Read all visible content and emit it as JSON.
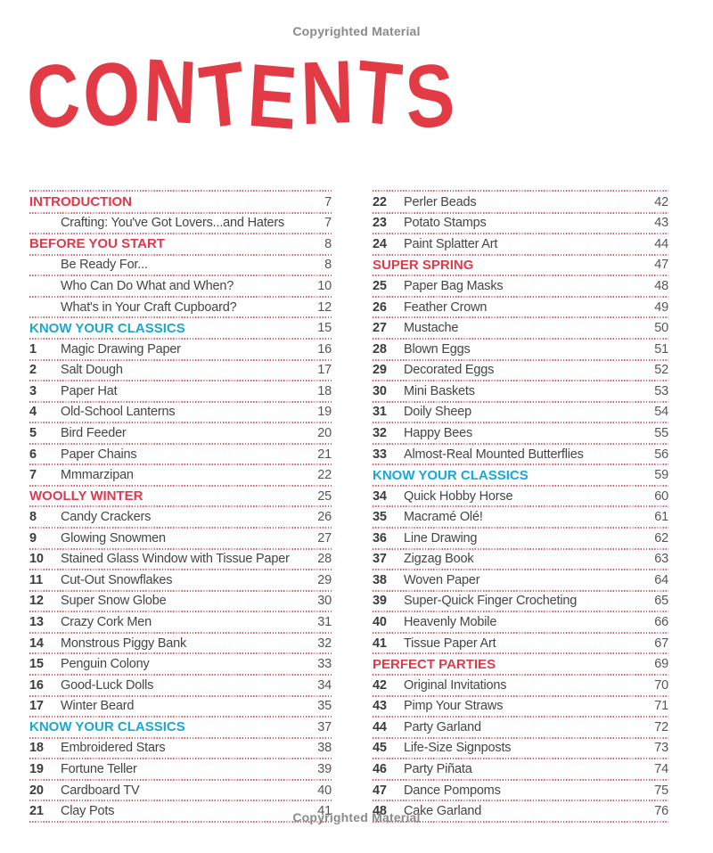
{
  "page": {
    "copyright_top": "Copyrighted Material",
    "copyright_bottom": "Copyrighted Material",
    "title": "CONTENTS"
  },
  "colors": {
    "title_red": "#E23B45",
    "section_red": "#E0394C",
    "section_cyan": "#1BA7D4",
    "dotted_line": "#D55F6E",
    "entry_text": "#454545",
    "copyright_gray": "#8A8A8A"
  },
  "toc": {
    "left": [
      {
        "type": "section",
        "accent": "red",
        "label": "INTRODUCTION",
        "page": "7"
      },
      {
        "type": "entry",
        "label": "Crafting: You've Got Lovers...and Haters",
        "page": "7"
      },
      {
        "type": "section",
        "accent": "red",
        "label": "BEFORE YOU START",
        "page": "8"
      },
      {
        "type": "entry",
        "label": "Be Ready For...",
        "page": "8"
      },
      {
        "type": "entry",
        "label": "Who Can Do What and When?",
        "page": "10"
      },
      {
        "type": "entry",
        "label": "What's in Your Craft Cupboard?",
        "page": "12"
      },
      {
        "type": "section",
        "accent": "cyan",
        "label": "KNOW YOUR CLASSICS",
        "page": "15"
      },
      {
        "type": "entry",
        "num": "1",
        "label": "Magic Drawing Paper",
        "page": "16"
      },
      {
        "type": "entry",
        "num": "2",
        "label": "Salt Dough",
        "page": "17"
      },
      {
        "type": "entry",
        "num": "3",
        "label": "Paper Hat",
        "page": "18"
      },
      {
        "type": "entry",
        "num": "4",
        "label": "Old-School Lanterns",
        "page": "19"
      },
      {
        "type": "entry",
        "num": "5",
        "label": "Bird Feeder",
        "page": "20"
      },
      {
        "type": "entry",
        "num": "6",
        "label": "Paper Chains",
        "page": "21"
      },
      {
        "type": "entry",
        "num": "7",
        "label": "Mmmarzipan",
        "page": "22"
      },
      {
        "type": "section",
        "accent": "red",
        "label": "WOOLLY WINTER",
        "page": "25"
      },
      {
        "type": "entry",
        "num": "8",
        "label": "Candy Crackers",
        "page": "26"
      },
      {
        "type": "entry",
        "num": "9",
        "label": "Glowing Snowmen",
        "page": "27"
      },
      {
        "type": "entry",
        "num": "10",
        "label": "Stained Glass Window with Tissue Paper",
        "page": "28"
      },
      {
        "type": "entry",
        "num": "11",
        "label": "Cut-Out Snowflakes",
        "page": "29"
      },
      {
        "type": "entry",
        "num": "12",
        "label": "Super Snow Globe",
        "page": "30"
      },
      {
        "type": "entry",
        "num": "13",
        "label": "Crazy Cork Men",
        "page": "31"
      },
      {
        "type": "entry",
        "num": "14",
        "label": "Monstrous Piggy Bank",
        "page": "32"
      },
      {
        "type": "entry",
        "num": "15",
        "label": "Penguin Colony",
        "page": "33"
      },
      {
        "type": "entry",
        "num": "16",
        "label": "Good-Luck Dolls",
        "page": "34"
      },
      {
        "type": "entry",
        "num": "17",
        "label": "Winter Beard",
        "page": "35"
      },
      {
        "type": "section",
        "accent": "cyan",
        "label": "KNOW YOUR CLASSICS",
        "page": "37"
      },
      {
        "type": "entry",
        "num": "18",
        "label": "Embroidered Stars",
        "page": "38"
      },
      {
        "type": "entry",
        "num": "19",
        "label": "Fortune Teller",
        "page": "39"
      },
      {
        "type": "entry",
        "num": "20",
        "label": "Cardboard TV",
        "page": "40"
      },
      {
        "type": "entry",
        "num": "21",
        "label": "Clay Pots",
        "page": "41"
      }
    ],
    "right": [
      {
        "type": "entry",
        "num": "22",
        "label": "Perler Beads",
        "page": "42"
      },
      {
        "type": "entry",
        "num": "23",
        "label": "Potato Stamps",
        "page": "43"
      },
      {
        "type": "entry",
        "num": "24",
        "label": "Paint Splatter Art",
        "page": "44"
      },
      {
        "type": "section",
        "accent": "red",
        "label": "SUPER SPRING",
        "page": "47"
      },
      {
        "type": "entry",
        "num": "25",
        "label": "Paper Bag Masks",
        "page": "48"
      },
      {
        "type": "entry",
        "num": "26",
        "label": "Feather Crown",
        "page": "49"
      },
      {
        "type": "entry",
        "num": "27",
        "label": "Mustache",
        "page": "50"
      },
      {
        "type": "entry",
        "num": "28",
        "label": "Blown Eggs",
        "page": "51"
      },
      {
        "type": "entry",
        "num": "29",
        "label": "Decorated Eggs",
        "page": "52"
      },
      {
        "type": "entry",
        "num": "30",
        "label": "Mini Baskets",
        "page": "53"
      },
      {
        "type": "entry",
        "num": "31",
        "label": "Doily Sheep",
        "page": "54"
      },
      {
        "type": "entry",
        "num": "32",
        "label": "Happy Bees",
        "page": "55"
      },
      {
        "type": "entry",
        "num": "33",
        "label": "Almost-Real Mounted Butterflies",
        "page": "56"
      },
      {
        "type": "section",
        "accent": "cyan",
        "label": "KNOW YOUR CLASSICS",
        "page": "59"
      },
      {
        "type": "entry",
        "num": "34",
        "label": "Quick Hobby Horse",
        "page": "60"
      },
      {
        "type": "entry",
        "num": "35",
        "label": "Macramé Olé!",
        "page": "61"
      },
      {
        "type": "entry",
        "num": "36",
        "label": "Line Drawing",
        "page": "62"
      },
      {
        "type": "entry",
        "num": "37",
        "label": "Zigzag Book",
        "page": "63"
      },
      {
        "type": "entry",
        "num": "38",
        "label": "Woven Paper",
        "page": "64"
      },
      {
        "type": "entry",
        "num": "39",
        "label": "Super-Quick Finger Crocheting",
        "page": "65"
      },
      {
        "type": "entry",
        "num": "40",
        "label": "Heavenly Mobile",
        "page": "66"
      },
      {
        "type": "entry",
        "num": "41",
        "label": "Tissue Paper Art",
        "page": "67"
      },
      {
        "type": "section",
        "accent": "red",
        "label": "PERFECT PARTIES",
        "page": "69"
      },
      {
        "type": "entry",
        "num": "42",
        "label": "Original Invitations",
        "page": "70"
      },
      {
        "type": "entry",
        "num": "43",
        "label": "Pimp Your Straws",
        "page": "71"
      },
      {
        "type": "entry",
        "num": "44",
        "label": "Party Garland",
        "page": "72"
      },
      {
        "type": "entry",
        "num": "45",
        "label": "Life-Size Signposts",
        "page": "73"
      },
      {
        "type": "entry",
        "num": "46",
        "label": "Party Piñata",
        "page": "74"
      },
      {
        "type": "entry",
        "num": "47",
        "label": "Dance Pompoms",
        "page": "75"
      },
      {
        "type": "entry",
        "num": "48",
        "label": "Cake Garland",
        "page": "76"
      }
    ]
  }
}
